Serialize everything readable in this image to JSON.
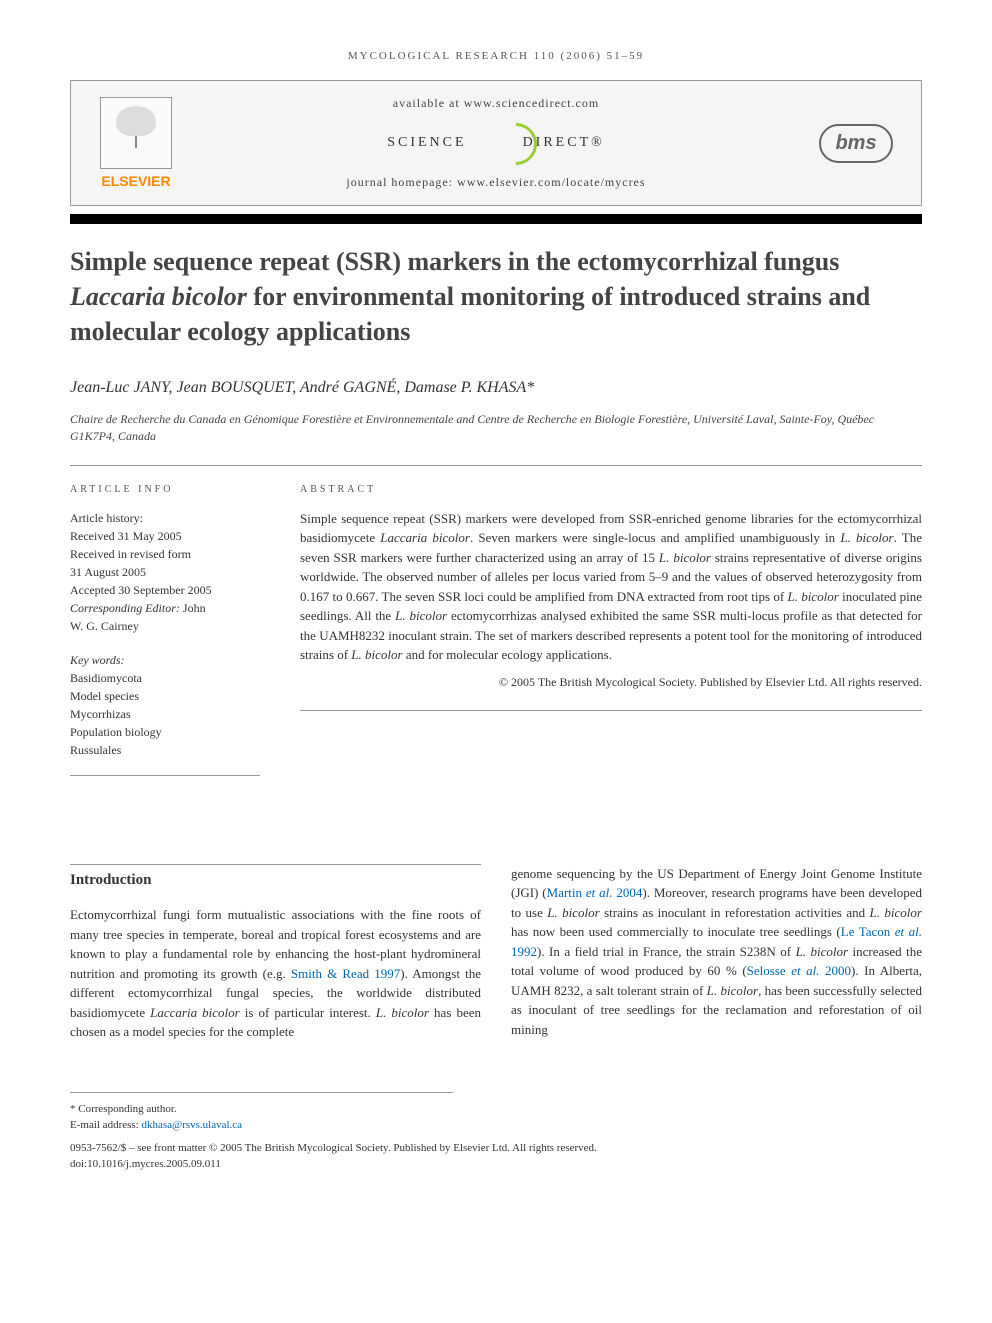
{
  "running_header": "MYCOLOGICAL RESEARCH 110 (2006) 51–59",
  "header": {
    "available": "available at www.sciencedirect.com",
    "sd_left": "SCIENCE",
    "sd_right": "DIRECT®",
    "journal_homepage": "journal homepage: www.elsevier.com/locate/mycres",
    "elsevier": "ELSEVIER",
    "bms": "bms"
  },
  "title_html": "Simple sequence repeat (SSR) markers in the ectomycorrhizal fungus <em>Laccaria bicolor</em> for environmental monitoring of introduced strains and molecular ecology applications",
  "authors": "Jean-Luc JANY, Jean BOUSQUET, André GAGNÉ, Damase P. KHASA*",
  "affiliation": "Chaire de Recherche du Canada en Génomique Forestière et Environnementale and Centre de Recherche en Biologie Forestière, Université Laval, Sainte-Foy, Québec G1K7P4, Canada",
  "article_info": {
    "heading": "ARTICLE INFO",
    "history_label": "Article history:",
    "received": "Received 31 May 2005",
    "revised1": "Received in revised form",
    "revised2": "31 August 2005",
    "accepted": "Accepted 30 September 2005",
    "editor_label": "Corresponding Editor:",
    "editor_name1": "John",
    "editor_name2": "W. G. Cairney",
    "keywords_label": "Key words:",
    "kw1": "Basidiomycota",
    "kw2": "Model species",
    "kw3": "Mycorrhizas",
    "kw4": "Population biology",
    "kw5": "Russulales"
  },
  "abstract": {
    "heading": "ABSTRACT",
    "text_html": "Simple sequence repeat (SSR) markers were developed from SSR-enriched genome libraries for the ectomycorrhizal basidiomycete <em>Laccaria bicolor</em>. Seven markers were single-locus and amplified unambiguously in <em>L. bicolor</em>. The seven SSR markers were further characterized using an array of 15 <em>L. bicolor</em> strains representative of diverse origins worldwide. The observed number of alleles per locus varied from 5–9 and the values of observed heterozygosity from 0.167 to 0.667. The seven SSR loci could be amplified from DNA extracted from root tips of <em>L. bicolor</em> inoculated pine seedlings. All the <em>L. bicolor</em> ectomycorrhizas analysed exhibited the same SSR multi-locus profile as that detected for the UAMH8232 inoculant strain. The set of markers described represents a potent tool for the monitoring of introduced strains of <em>L. bicolor</em> and for molecular ecology applications.",
    "copyright": "© 2005 The British Mycological Society. Published by Elsevier Ltd. All rights reserved."
  },
  "intro": {
    "heading": "Introduction",
    "col1_html": "Ectomycorrhizal fungi form mutualistic associations with the fine roots of many tree species in temperate, boreal and tropical forest ecosystems and are known to play a fundamental role by enhancing the host-plant hydromineral nutrition and promoting its growth (e.g. <span class=\"ref-link\">Smith & Read 1997</span>). Amongst the different ectomycorrhizal fungal species, the worldwide distributed basidiomycete <em>Laccaria bicolor</em> is of particular interest. <em>L. bicolor</em> has been chosen as a model species for the complete",
    "col2_html": "genome sequencing by the US Department of Energy Joint Genome Institute (JGI) (<span class=\"ref-link\">Martin <em>et al.</em> 2004</span>). Moreover, research programs have been developed to use <em>L. bicolor</em> strains as inoculant in reforestation activities and <em>L. bicolor</em> has now been used commercially to inoculate tree seedlings (<span class=\"ref-link\">Le Tacon <em>et al.</em> 1992</span>). In a field trial in France, the strain S238N of <em>L. bicolor</em> increased the total volume of wood produced by 60 % (<span class=\"ref-link\">Selosse <em>et al.</em> 2000</span>). In Alberta, UAMH 8232, a salt tolerant strain of <em>L. bicolor</em>, has been successfully selected as inoculant of tree seedlings for the reclamation and reforestation of oil mining"
  },
  "footnotes": {
    "corr": "* Corresponding author.",
    "email_label": "E-mail address: ",
    "email": "dkhasa@rsvs.ulaval.ca"
  },
  "bottom": {
    "line1": "0953-7562/$ – see front matter © 2005 The British Mycological Society. Published by Elsevier Ltd. All rights reserved.",
    "line2": "doi:10.1016/j.mycres.2005.09.011"
  },
  "colors": {
    "elsevier_orange": "#ff8800",
    "sd_green": "#9acd32",
    "link_blue": "#0066aa",
    "text": "#333333",
    "heading_gray": "#444444"
  }
}
